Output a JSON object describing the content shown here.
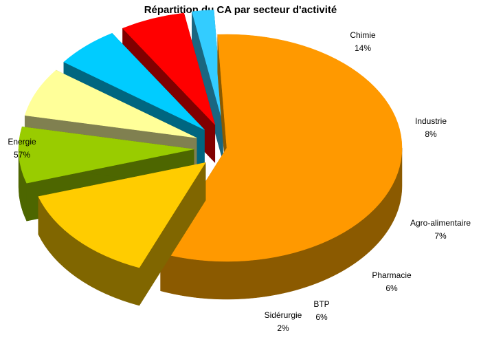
{
  "chart_data": {
    "type": "pie",
    "title": "Répartition du CA par secteur d'activité",
    "legend": "none",
    "three_d": true,
    "exploded": true,
    "slices": [
      {
        "name": "Energie",
        "label": "57%",
        "value": 57,
        "color": "#ff9900",
        "side": "#8b5a00"
      },
      {
        "name": "Chimie",
        "label": "14%",
        "value": 14,
        "color": "#ffcc00",
        "side": "#806600"
      },
      {
        "name": "Industrie",
        "label": "8%",
        "value": 8,
        "color": "#99cc00",
        "side": "#4d6600"
      },
      {
        "name": "Agro-alimentaire",
        "label": "7%",
        "value": 7,
        "color": "#ffff99",
        "side": "#808050"
      },
      {
        "name": "Pharmacie",
        "label": "6%",
        "value": 6,
        "color": "#00ccff",
        "side": "#006680"
      },
      {
        "name": "BTP",
        "label": "6%",
        "value": 6,
        "color": "#ff0000",
        "side": "#800000"
      },
      {
        "name": "Sidérurgie",
        "label": "2%",
        "value": 2,
        "color": "#33ccff",
        "side": "#1a6680"
      }
    ]
  }
}
